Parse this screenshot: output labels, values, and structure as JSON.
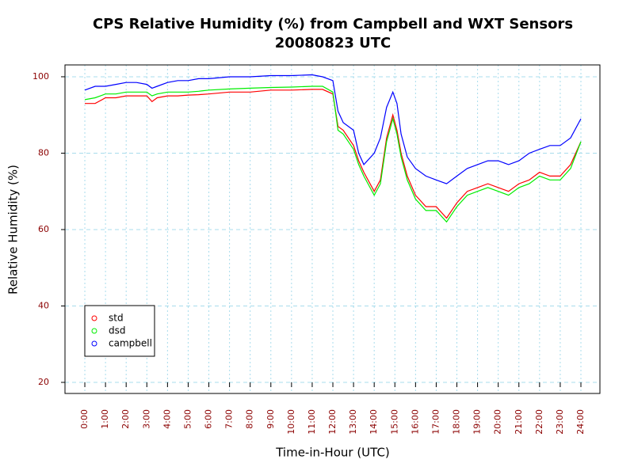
{
  "chart_data": {
    "type": "line",
    "title": "CPS Relative Humidity (%) from Campbell and WXT Sensors",
    "subtitle": "20080823  UTC",
    "x_label": "Time-in-Hour (UTC)",
    "y_label": "Relative Humidity (%)",
    "x": [
      0,
      0.5,
      1,
      1.5,
      2,
      2.5,
      3,
      3.25,
      3.5,
      4,
      4.5,
      5,
      5.5,
      6,
      7,
      8,
      9,
      10,
      11,
      11.5,
      12,
      12.25,
      12.5,
      13,
      13.25,
      13.5,
      14,
      14.3,
      14.6,
      14.9,
      15.1,
      15.3,
      15.6,
      16,
      16.5,
      17,
      17.5,
      18,
      18.5,
      19,
      19.5,
      20,
      20.5,
      21,
      21.5,
      22,
      22.5,
      23,
      23.5,
      24
    ],
    "series": [
      {
        "name": "std",
        "color": "#ff0000",
        "values": [
          93,
          93,
          94.5,
          94.5,
          95,
          95,
          95,
          93.5,
          94.5,
          95,
          95,
          95.2,
          95.3,
          95.5,
          96,
          96,
          96.5,
          96.5,
          96.7,
          96.7,
          95.5,
          87,
          86,
          82,
          78,
          75,
          70,
          73,
          84,
          90,
          86,
          80,
          74,
          69,
          66,
          66,
          63,
          67,
          70,
          71,
          72,
          71,
          70,
          72,
          73,
          75,
          74,
          74,
          77,
          83
        ]
      },
      {
        "name": "dsd",
        "color": "#00ee00",
        "values": [
          94,
          94.5,
          95.5,
          95.5,
          96,
          96,
          96,
          95,
          95.5,
          96,
          96,
          96,
          96.2,
          96.5,
          96.8,
          97,
          97.2,
          97.3,
          97.5,
          97.5,
          96,
          86,
          85,
          81,
          77,
          74,
          69,
          72,
          83,
          89,
          85,
          79,
          73,
          68,
          65,
          65,
          62,
          66,
          69,
          70,
          71,
          70,
          69,
          71,
          72,
          74,
          73,
          73,
          76,
          83
        ]
      },
      {
        "name": "campbell",
        "color": "#0000ff",
        "values": [
          96.5,
          97.5,
          97.5,
          98,
          98.5,
          98.5,
          98,
          97,
          97.5,
          98.5,
          99,
          99,
          99.5,
          99.5,
          100,
          100,
          100.3,
          100.3,
          100.5,
          100,
          99,
          91,
          88,
          86,
          80,
          77,
          80,
          84,
          92,
          96,
          93,
          85,
          79,
          76,
          74,
          73,
          72,
          74,
          76,
          77,
          78,
          78,
          77,
          78,
          80,
          81,
          82,
          82,
          84,
          89
        ]
      }
    ],
    "xlim": [
      -0.96,
      24.92
    ],
    "ylim": [
      17.1,
      103.1
    ],
    "xticks": [
      {
        "value": 0,
        "label": "0:00"
      },
      {
        "value": 1,
        "label": "1:00"
      },
      {
        "value": 2,
        "label": "2:00"
      },
      {
        "value": 3,
        "label": "3:00"
      },
      {
        "value": 4,
        "label": "4:00"
      },
      {
        "value": 5,
        "label": "5:00"
      },
      {
        "value": 6,
        "label": "6:00"
      },
      {
        "value": 7,
        "label": "7:00"
      },
      {
        "value": 8,
        "label": "8:00"
      },
      {
        "value": 9,
        "label": "9:00"
      },
      {
        "value": 10,
        "label": "10:00"
      },
      {
        "value": 11,
        "label": "11:00"
      },
      {
        "value": 12,
        "label": "12:00"
      },
      {
        "value": 13,
        "label": "13:00"
      },
      {
        "value": 14,
        "label": "14:00"
      },
      {
        "value": 15,
        "label": "15:00"
      },
      {
        "value": 16,
        "label": "16:00"
      },
      {
        "value": 17,
        "label": "17:00"
      },
      {
        "value": 18,
        "label": "18:00"
      },
      {
        "value": 19,
        "label": "19:00"
      },
      {
        "value": 20,
        "label": "20:00"
      },
      {
        "value": 21,
        "label": "21:00"
      },
      {
        "value": 22,
        "label": "22:00"
      },
      {
        "value": 23,
        "label": "23:00"
      },
      {
        "value": 24,
        "label": "24:00"
      }
    ],
    "yticks": [
      20,
      40,
      60,
      80,
      100
    ],
    "grid": true,
    "legend": "bottom-left"
  }
}
